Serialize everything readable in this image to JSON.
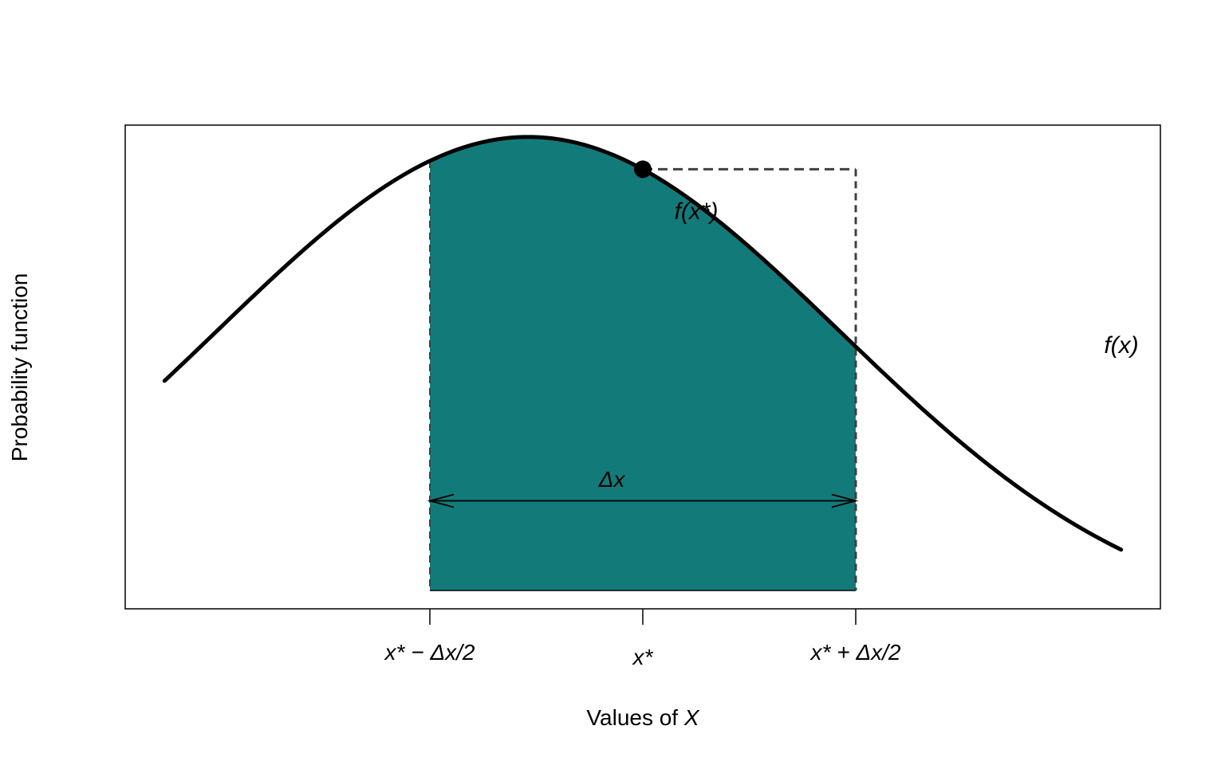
{
  "chart_data": {
    "type": "line",
    "title": "",
    "xlabel": {
      "prefix": "Values of ",
      "var": "X"
    },
    "ylabel": "Probability function",
    "xlim": [
      -1.23,
      1.93
    ],
    "ylim": [
      0.018,
      0.43
    ],
    "grid": false,
    "legend": "none",
    "curve": {
      "label": "f(x)",
      "x_range": [
        -1.11,
        1.81
      ],
      "mean": 0.0,
      "sd": 0.95
    },
    "x_star": 0.35,
    "delta_x": 1.3,
    "ticks": [
      {
        "x": -0.3,
        "label_a": "x*",
        "label_b": " − Δx/2"
      },
      {
        "x": 0.35,
        "label_a": "x*",
        "label_b": ""
      },
      {
        "x": 1.0,
        "label_a": "x*",
        "label_b": " + Δx/2"
      }
    ],
    "annotations": {
      "point_label": "f(x*)",
      "curve_label": "f(x)",
      "width_label": "Δx",
      "width_arrow_y": 0.11
    },
    "colors": {
      "fill": "#127b7a",
      "curve": "#000000",
      "dashed": "#404040"
    }
  }
}
